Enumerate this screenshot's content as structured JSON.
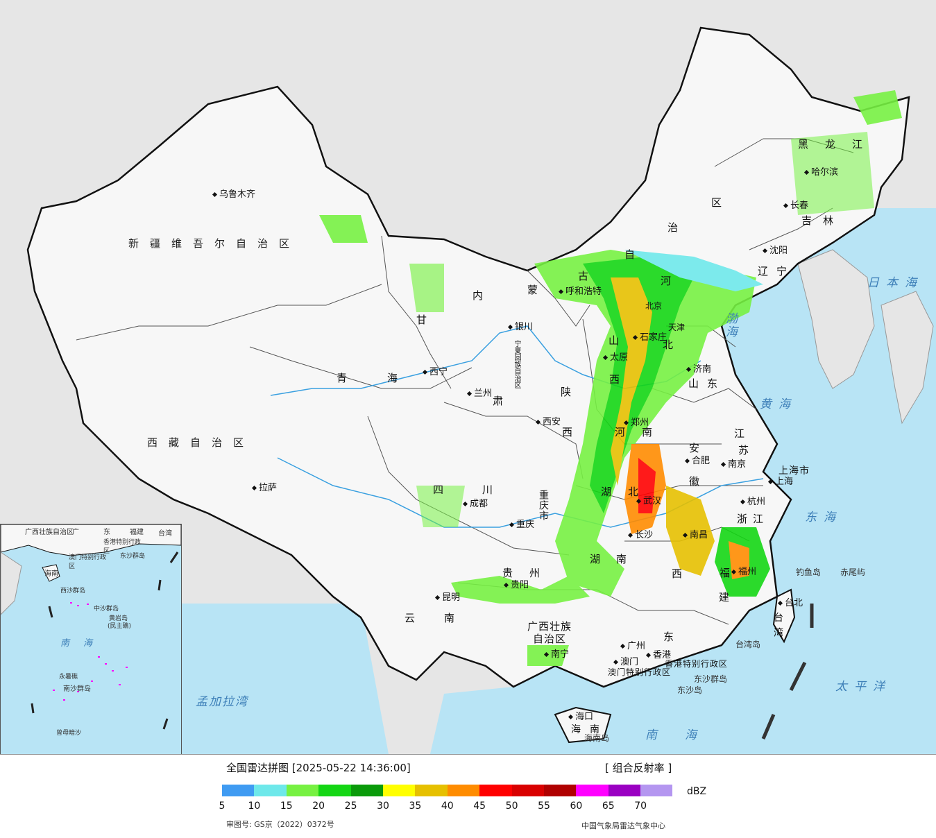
{
  "legend": {
    "title": "全国雷达拼图 [2025-05-22 14:36:00]",
    "product": "[ 组合反射率 ]",
    "unit": "dBZ",
    "review_number": "审图号: GS京（2022）0372号",
    "source": "中国气象局雷达气象中心",
    "colors": [
      "#3f9bf2",
      "#6ee8ea",
      "#77f142",
      "#14d614",
      "#0a9a0a",
      "#ffff00",
      "#e6c000",
      "#ff8c00",
      "#ff0000",
      "#d90000",
      "#b00000",
      "#ff00ff",
      "#9a00c2",
      "#b496f0"
    ],
    "ticks": [
      "5",
      "10",
      "15",
      "20",
      "25",
      "30",
      "35",
      "40",
      "45",
      "50",
      "55",
      "60",
      "65",
      "70"
    ]
  },
  "map": {
    "regions": [
      {
        "name": "region-xinjiang",
        "text": "新疆维吾尔自治区"
      },
      {
        "name": "region-xizang",
        "text": "西藏自治区"
      },
      {
        "name": "region-qinghai-1",
        "text": "青"
      },
      {
        "name": "region-qinghai-2",
        "text": "海"
      },
      {
        "name": "region-gansu-1",
        "text": "甘"
      },
      {
        "name": "region-gansu-2",
        "text": "肃"
      },
      {
        "name": "region-neimenggu-1",
        "text": "内"
      },
      {
        "name": "region-neimenggu-2",
        "text": "蒙"
      },
      {
        "name": "region-neimenggu-3",
        "text": "古"
      },
      {
        "name": "region-neimenggu-4",
        "text": "自"
      },
      {
        "name": "region-neimenggu-5",
        "text": "治"
      },
      {
        "name": "region-neimenggu-6",
        "text": "区"
      },
      {
        "name": "region-ningxia",
        "text": "宁夏回族自治区"
      },
      {
        "name": "region-shaanxi-1",
        "text": "陕"
      },
      {
        "name": "region-shaanxi-2",
        "text": "西"
      },
      {
        "name": "region-shanxi-1",
        "text": "山"
      },
      {
        "name": "region-shanxi-2",
        "text": "西"
      },
      {
        "name": "region-hebei-1",
        "text": "河"
      },
      {
        "name": "region-hebei-2",
        "text": "北"
      },
      {
        "name": "region-henan-1",
        "text": "河"
      },
      {
        "name": "region-henan-2",
        "text": "南"
      },
      {
        "name": "region-hubei-1",
        "text": "湖"
      },
      {
        "name": "region-hubei-2",
        "text": "北"
      },
      {
        "name": "region-hunan-1",
        "text": "湖"
      },
      {
        "name": "region-hunan-2",
        "text": "南"
      },
      {
        "name": "region-sichuan-1",
        "text": "四"
      },
      {
        "name": "region-sichuan-2",
        "text": "川"
      },
      {
        "name": "region-chongqing",
        "text": "重庆市"
      },
      {
        "name": "region-guizhou-1",
        "text": "贵"
      },
      {
        "name": "region-guizhou-2",
        "text": "州"
      },
      {
        "name": "region-yunnan-1",
        "text": "云"
      },
      {
        "name": "region-yunnan-2",
        "text": "南"
      },
      {
        "name": "region-guangxi-1",
        "text": "广西壮族"
      },
      {
        "name": "region-guangxi-2",
        "text": "自治区"
      },
      {
        "name": "region-guangdong",
        "text": "东"
      },
      {
        "name": "region-jiangxi",
        "text": "西"
      },
      {
        "name": "region-fujian-1",
        "text": "福"
      },
      {
        "name": "region-fujian-2",
        "text": "建"
      },
      {
        "name": "region-zhejiang",
        "text": "浙江"
      },
      {
        "name": "region-anhui-1",
        "text": "安"
      },
      {
        "name": "region-anhui-2",
        "text": "徽"
      },
      {
        "name": "region-jiangsu-1",
        "text": "江"
      },
      {
        "name": "region-jiangsu-2",
        "text": "苏"
      },
      {
        "name": "region-shandong",
        "text": "山东"
      },
      {
        "name": "region-liaoning",
        "text": "辽宁"
      },
      {
        "name": "region-jilin",
        "text": "吉林"
      },
      {
        "name": "region-heilongjiang",
        "text": "黑龙江"
      },
      {
        "name": "region-shanghai",
        "text": "上海市"
      },
      {
        "name": "region-taiwan-1",
        "text": "台"
      },
      {
        "name": "region-taiwan-2",
        "text": "湾"
      },
      {
        "name": "region-hainan-1",
        "text": "海"
      },
      {
        "name": "region-hainan-2",
        "text": "南"
      },
      {
        "name": "region-xianggang",
        "text": "香港特别行政区"
      },
      {
        "name": "region-aomen",
        "text": "澳门特别行政区"
      },
      {
        "name": "region-tianjin",
        "text": "天津"
      },
      {
        "name": "region-beijing",
        "text": "北京"
      }
    ],
    "cities": [
      {
        "name": "city-urumqi",
        "text": "乌鲁木齐"
      },
      {
        "name": "city-lhasa",
        "text": "拉萨"
      },
      {
        "name": "city-xining",
        "text": "西宁"
      },
      {
        "name": "city-lanzhou",
        "text": "兰州"
      },
      {
        "name": "city-yinchuan",
        "text": "银川"
      },
      {
        "name": "city-hohhot",
        "text": "呼和浩特"
      },
      {
        "name": "city-shijiazhuang",
        "text": "石家庄"
      },
      {
        "name": "city-taiyuan",
        "text": "太原"
      },
      {
        "name": "city-jinan",
        "text": "济南"
      },
      {
        "name": "city-zhengzhou",
        "text": "郑州"
      },
      {
        "name": "city-xian",
        "text": "西安"
      },
      {
        "name": "city-chengdu",
        "text": "成都"
      },
      {
        "name": "city-chongqing",
        "text": "重庆"
      },
      {
        "name": "city-wuhan",
        "text": "武汉"
      },
      {
        "name": "city-hefei",
        "text": "合肥"
      },
      {
        "name": "city-nanjing",
        "text": "南京"
      },
      {
        "name": "city-shanghai",
        "text": "上海"
      },
      {
        "name": "city-hangzhou",
        "text": "杭州"
      },
      {
        "name": "city-nanchang",
        "text": "南昌"
      },
      {
        "name": "city-changsha",
        "text": "长沙"
      },
      {
        "name": "city-guiyang",
        "text": "贵阳"
      },
      {
        "name": "city-kunming",
        "text": "昆明"
      },
      {
        "name": "city-nanning",
        "text": "南宁"
      },
      {
        "name": "city-guangzhou",
        "text": "广州"
      },
      {
        "name": "city-fuzhou",
        "text": "福州"
      },
      {
        "name": "city-taibei",
        "text": "台北"
      },
      {
        "name": "city-haikou",
        "text": "海口"
      },
      {
        "name": "city-aomen",
        "text": "澳门"
      },
      {
        "name": "city-xianggang",
        "text": "香港"
      },
      {
        "name": "city-shenyang",
        "text": "沈阳"
      },
      {
        "name": "city-changchun",
        "text": "长春"
      },
      {
        "name": "city-harbin",
        "text": "哈尔滨"
      }
    ],
    "seas": [
      {
        "name": "sea-japan",
        "text": "日本海"
      },
      {
        "name": "sea-bohai",
        "text": "渤海"
      },
      {
        "name": "sea-yellow",
        "text": "黄海"
      },
      {
        "name": "sea-east",
        "text": "东海"
      },
      {
        "name": "sea-pacific",
        "text": "太平洋"
      },
      {
        "name": "sea-south",
        "text": "南海"
      },
      {
        "name": "sea-bengal",
        "text": "孟加拉湾"
      }
    ],
    "islands": [
      {
        "name": "island-diaoyu",
        "text": "钓鱼岛"
      },
      {
        "name": "island-chiwei",
        "text": "赤尾屿"
      },
      {
        "name": "island-taiwan",
        "text": "台湾岛"
      },
      {
        "name": "island-dongsha-qundao",
        "text": "东沙群岛"
      },
      {
        "name": "island-dongsha",
        "text": "东沙岛"
      },
      {
        "name": "island-hainan",
        "text": "海南岛"
      }
    ],
    "inset": {
      "guangxi": "广西壮族自治区",
      "guangdong": "广",
      "dong": "东",
      "fujian": "福建",
      "taiwan": "台湾",
      "xianggang": "香港特别行政区",
      "aomen": "澳门特别行政区",
      "dongsha": "东沙群岛",
      "hainan": "海南",
      "xisha": "西沙群岛",
      "zhongsha": "中沙群岛",
      "huangyan": "黄岩岛",
      "minzhu": "(民主礁)",
      "nanhai": "南海",
      "yongshu": "永暑礁",
      "nansha": "南沙群岛",
      "zengmu": "曾母暗沙"
    }
  }
}
